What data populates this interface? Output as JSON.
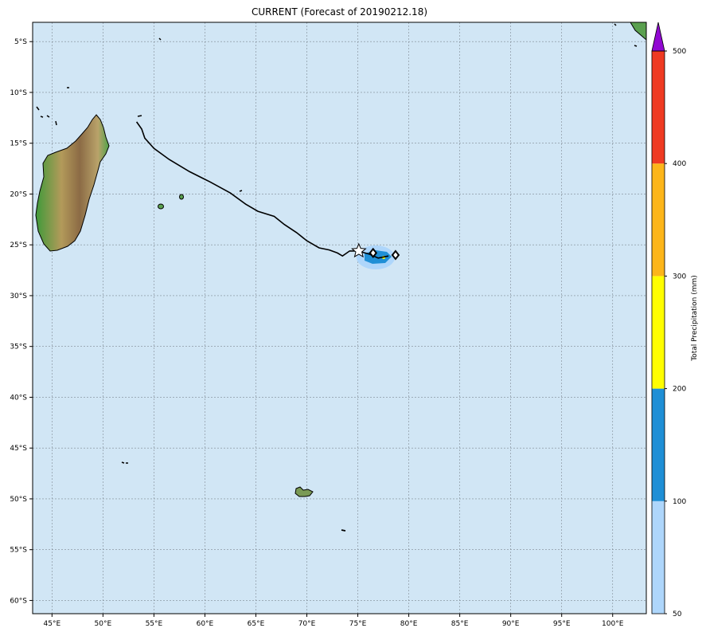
{
  "title": "CURRENT (Forecast of 20190212.18)",
  "colors": {
    "ocean": "#d1e6f5",
    "grid": "#7f8a94",
    "track": "#000000",
    "land_low": "#3f9a3a",
    "land_mid": "#b39a5a",
    "land_high": "#8c6b45"
  },
  "x_ticks": [
    "45°E",
    "50°E",
    "55°E",
    "60°E",
    "65°E",
    "70°E",
    "75°E",
    "80°E",
    "85°E",
    "90°E",
    "95°E",
    "100°E"
  ],
  "x_tick_values": [
    45,
    50,
    55,
    60,
    65,
    70,
    75,
    80,
    85,
    90,
    95,
    100
  ],
  "y_ticks": [
    "5°S",
    "10°S",
    "15°S",
    "20°S",
    "25°S",
    "30°S",
    "35°S",
    "40°S",
    "45°S",
    "50°S",
    "55°S",
    "60°S"
  ],
  "y_tick_values": [
    -5,
    -10,
    -15,
    -20,
    -25,
    -30,
    -35,
    -40,
    -45,
    -50,
    -55,
    -60
  ],
  "extent": {
    "lon": [
      43.1,
      103.3
    ],
    "lat": [
      -61.3,
      -3.1
    ]
  },
  "track": [
    [
      53.3,
      -12.9
    ],
    [
      53.8,
      -13.6
    ],
    [
      54.1,
      -14.5
    ],
    [
      55.0,
      -15.5
    ],
    [
      56.5,
      -16.6
    ],
    [
      58.5,
      -17.8
    ],
    [
      60.5,
      -18.8
    ],
    [
      62.5,
      -19.9
    ],
    [
      64.0,
      -21.0
    ],
    [
      65.2,
      -21.7
    ],
    [
      66.8,
      -22.2
    ],
    [
      67.8,
      -23.0
    ],
    [
      69.0,
      -23.8
    ],
    [
      70.0,
      -24.6
    ],
    [
      71.2,
      -25.3
    ],
    [
      72.2,
      -25.5
    ],
    [
      73.0,
      -25.8
    ],
    [
      73.5,
      -26.1
    ],
    [
      74.2,
      -25.6
    ],
    [
      75.0,
      -25.6
    ],
    [
      76.1,
      -25.9
    ],
    [
      77.0,
      -26.3
    ],
    [
      78.0,
      -26.1
    ]
  ],
  "star": [
    75.1,
    -25.6
  ],
  "markers": [
    [
      76.5,
      -25.8
    ],
    [
      78.7,
      -26.0
    ]
  ],
  "colorbar": {
    "label": "Total Precipitation (mm)",
    "ticks": [
      "50",
      "100",
      "200",
      "300",
      "400",
      "500"
    ],
    "colors": [
      "#aed6fb",
      "#1f8fd6",
      "#fffe00",
      "#fcb51a",
      "#ef3a22"
    ],
    "extend_color": "#9108d2"
  }
}
